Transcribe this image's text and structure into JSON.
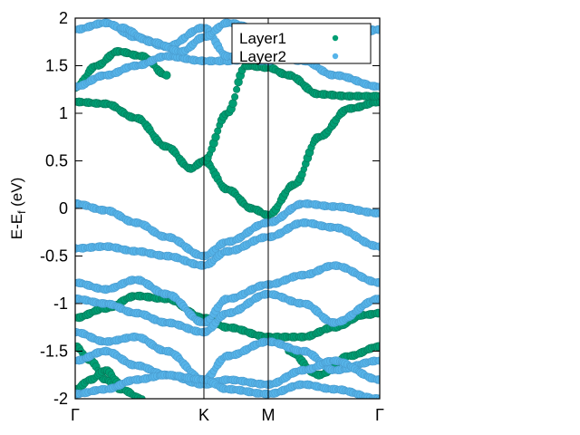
{
  "chart_data": {
    "type": "scatter",
    "title": "",
    "ylabel": {
      "main": "E-E",
      "sub": "f",
      "unit": " (eV)"
    },
    "ylim": [
      -2,
      2
    ],
    "yticks": [
      -2,
      -1.5,
      -1,
      -0.5,
      0,
      0.5,
      1,
      1.5,
      2
    ],
    "xlim": [
      0,
      1
    ],
    "kpoints": [
      {
        "label": "Γ",
        "x": 0.0
      },
      {
        "label": "K",
        "x": 0.4226
      },
      {
        "label": "M",
        "x": 0.6339
      },
      {
        "label": "Γ",
        "x": 1.0
      }
    ],
    "grid": false,
    "legend_position": "top-right",
    "series": [
      {
        "name": "Layer1",
        "color": "#009e73",
        "bands": [
          {
            "x": [
              0,
              0.1,
              0.2,
              0.3,
              0.38,
              0.4226,
              0.5,
              0.58,
              0.6339,
              0.72,
              0.8,
              0.9,
              1.0
            ],
            "y": [
              1.12,
              1.1,
              0.95,
              0.65,
              0.42,
              0.5,
              0.2,
              0.0,
              -0.07,
              0.25,
              0.75,
              1.05,
              1.12
            ]
          },
          {
            "x": [
              0.4226,
              0.5,
              0.56,
              0.6339,
              0.7,
              0.8,
              0.9,
              1.0
            ],
            "y": [
              0.5,
              1.0,
              1.5,
              1.48,
              1.4,
              1.2,
              1.18,
              1.18
            ]
          },
          {
            "x": [
              0,
              0.07,
              0.14,
              0.22,
              0.3
            ],
            "y": [
              1.27,
              1.5,
              1.65,
              1.6,
              1.4
            ]
          },
          {
            "x": [
              0,
              0.1,
              0.2,
              0.3,
              0.4226,
              0.5,
              0.6339,
              0.75,
              0.85,
              0.95,
              1.0
            ],
            "y": [
              -1.15,
              -1.05,
              -0.92,
              -0.95,
              -1.15,
              -1.25,
              -1.35,
              -1.35,
              -1.25,
              -1.12,
              -1.1
            ]
          },
          {
            "x": [
              0,
              0.05,
              0.1,
              0.15,
              0.22
            ],
            "y": [
              -1.45,
              -1.6,
              -1.8,
              -1.9,
              -2.0
            ]
          },
          {
            "x": [
              0,
              0.05,
              0.1,
              0.15
            ],
            "y": [
              -1.9,
              -1.8,
              -1.7,
              -1.85
            ]
          },
          {
            "x": [
              0.7,
              0.8,
              0.9,
              1.0
            ],
            "y": [
              -1.5,
              -1.75,
              -1.55,
              -1.45
            ]
          }
        ]
      },
      {
        "name": "Layer2",
        "color": "#56b4e9",
        "bands": [
          {
            "x": [
              0,
              0.1,
              0.2,
              0.3,
              0.4226,
              0.5,
              0.6339,
              0.75,
              0.85,
              1.0
            ],
            "y": [
              0.05,
              -0.02,
              -0.15,
              -0.3,
              -0.5,
              -0.35,
              -0.15,
              0.05,
              0.02,
              -0.05
            ]
          },
          {
            "x": [
              0,
              0.1,
              0.2,
              0.3,
              0.4226,
              0.5,
              0.6339,
              0.75,
              0.85,
              1.0
            ],
            "y": [
              -0.42,
              -0.4,
              -0.45,
              -0.5,
              -0.6,
              -0.45,
              -0.3,
              -0.15,
              -0.2,
              -0.4
            ]
          },
          {
            "x": [
              0,
              0.1,
              0.2,
              0.3,
              0.4226,
              0.5,
              0.6339,
              0.75,
              0.85,
              1.0
            ],
            "y": [
              -0.78,
              -0.85,
              -0.75,
              -0.9,
              -1.2,
              -0.95,
              -0.8,
              -0.7,
              -0.6,
              -0.78
            ]
          },
          {
            "x": [
              0,
              0.1,
              0.2,
              0.3,
              0.4226,
              0.5,
              0.6339,
              0.75,
              0.85,
              1.0
            ],
            "y": [
              -0.95,
              -1.0,
              -1.1,
              -1.2,
              -1.3,
              -1.1,
              -0.9,
              -1.0,
              -1.2,
              -0.95
            ]
          },
          {
            "x": [
              0,
              0.1,
              0.2,
              0.3,
              0.4226,
              0.5,
              0.6339,
              0.75,
              0.85,
              1.0
            ],
            "y": [
              -1.3,
              -1.4,
              -1.35,
              -1.5,
              -1.8,
              -1.55,
              -1.4,
              -1.5,
              -1.7,
              -1.6
            ]
          },
          {
            "x": [
              0,
              0.1,
              0.2,
              0.3,
              0.4226,
              0.5,
              0.6339,
              0.75,
              0.85,
              1.0
            ],
            "y": [
              -1.6,
              -1.5,
              -1.65,
              -1.75,
              -1.85,
              -1.8,
              -1.85,
              -1.7,
              -1.6,
              -1.8
            ]
          },
          {
            "x": [
              0,
              0.1,
              0.2,
              0.3,
              0.4226,
              0.5,
              0.6339,
              0.75,
              0.85,
              1.0
            ],
            "y": [
              -1.95,
              -1.9,
              -1.8,
              -1.75,
              -1.8,
              -1.9,
              -1.95,
              -1.85,
              -1.9,
              -2.0
            ]
          },
          {
            "x": [
              0,
              0.1,
              0.2,
              0.3,
              0.4226,
              0.5,
              0.6339,
              0.75,
              0.85,
              1.0
            ],
            "y": [
              1.28,
              1.4,
              1.5,
              1.6,
              1.55,
              1.55,
              1.6,
              1.55,
              1.4,
              1.28
            ]
          },
          {
            "x": [
              0,
              0.1,
              0.2,
              0.3,
              0.4226,
              0.5,
              0.6339,
              0.75,
              0.85,
              1.0
            ],
            "y": [
              1.88,
              1.95,
              1.8,
              1.7,
              1.9,
              1.6,
              1.55,
              1.75,
              1.85,
              1.88
            ]
          },
          {
            "x": [
              0.15,
              0.25,
              0.35,
              0.4226,
              0.5,
              0.6339,
              0.75,
              0.9,
              1.0
            ],
            "y": [
              1.9,
              1.75,
              1.65,
              1.8,
              1.95,
              1.85,
              1.7,
              1.8,
              1.88
            ]
          }
        ]
      }
    ]
  }
}
